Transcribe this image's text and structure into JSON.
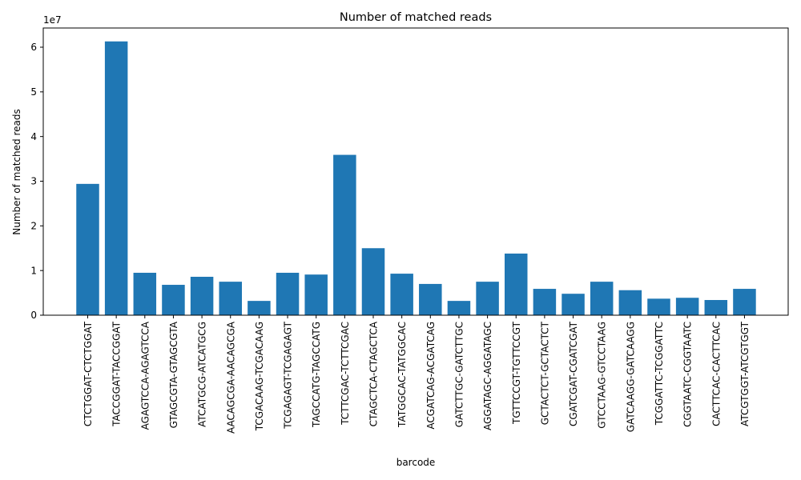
{
  "chart_data": {
    "type": "bar",
    "title": "Number of matched reads",
    "xlabel": "barcode",
    "ylabel": "Number of matched reads",
    "y_offset_label": "1e7",
    "y_scale": 10000000,
    "ylim": [
      0,
      6.43
    ],
    "yticks": [
      0,
      1,
      2,
      3,
      4,
      5,
      6
    ],
    "bar_color": "#1f77b4",
    "grid": false,
    "categories": [
      "CTCTGGAT-CTCTGGAT",
      "TACCGGAT-TACCGGAT",
      "AGAGTCCA-AGAGTCCA",
      "GTAGCGTA-GTAGCGTA",
      "ATCATGCG-ATCATGCG",
      "AACAGCGA-AACAGCGA",
      "TCGACAAG-TCGACAAG",
      "TCGAGAGT-TCGAGAGT",
      "TAGCCATG-TAGCCATG",
      "TCTTCGAC-TCTTCGAC",
      "CTAGCTCA-CTAGCTCA",
      "TATGGCAC-TATGGCAC",
      "ACGATCAG-ACGATCAG",
      "GATCTTGC-GATCTTGC",
      "AGGATAGC-AGGATAGC",
      "TGTTCCGT-TGTTCCGT",
      "GCTACTCT-GCTACTCT",
      "CGATCGAT-CGATCGAT",
      "GTCCTAAG-GTCCTAAG",
      "GATCAAGG-GATCAAGG",
      "TCGGATTC-TCGGATTC",
      "CGGTAATC-CGGTAATC",
      "CACTTCAC-CACTTCAC",
      "ATCGTGGT-ATCGTGGT"
    ],
    "values": [
      29400000,
      61300000,
      9500000,
      6800000,
      8600000,
      7500000,
      3200000,
      9500000,
      9100000,
      35900000,
      15000000,
      9300000,
      7000000,
      3200000,
      7500000,
      13800000,
      5900000,
      4800000,
      7500000,
      5600000,
      3700000,
      3900000,
      3400000,
      5900000
    ]
  }
}
